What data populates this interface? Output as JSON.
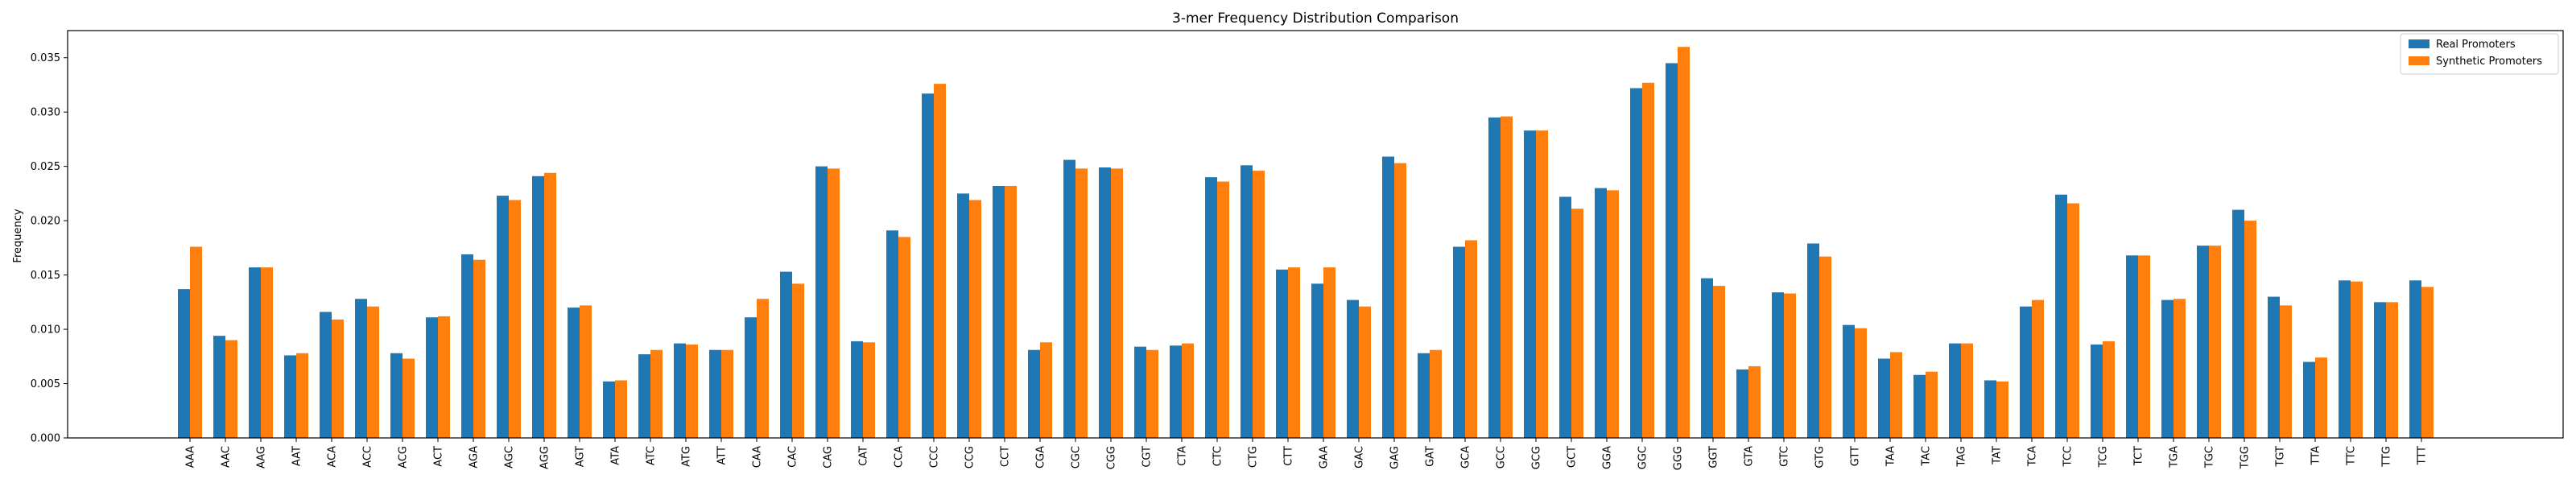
{
  "chart_data": {
    "type": "bar",
    "title": "3-mer Frequency Distribution Comparison",
    "xlabel": "",
    "ylabel": "Frequency",
    "ylim": [
      0,
      0.0375
    ],
    "yticks": [
      "0.000",
      "0.005",
      "0.010",
      "0.015",
      "0.020",
      "0.025",
      "0.030",
      "0.035"
    ],
    "grid": false,
    "legend_position": "top-right",
    "categories": [
      "AAA",
      "AAC",
      "AAG",
      "AAT",
      "ACA",
      "ACC",
      "ACG",
      "ACT",
      "AGA",
      "AGC",
      "AGG",
      "AGT",
      "ATA",
      "ATC",
      "ATG",
      "ATT",
      "CAA",
      "CAC",
      "CAG",
      "CAT",
      "CCA",
      "CCC",
      "CCG",
      "CCT",
      "CGA",
      "CGC",
      "CGG",
      "CGT",
      "CTA",
      "CTC",
      "CTG",
      "CTT",
      "GAA",
      "GAC",
      "GAG",
      "GAT",
      "GCA",
      "GCC",
      "GCG",
      "GCT",
      "GGA",
      "GGC",
      "GGG",
      "GGT",
      "GTA",
      "GTC",
      "GTG",
      "GTT",
      "TAA",
      "TAC",
      "TAG",
      "TAT",
      "TCA",
      "TCC",
      "TCG",
      "TCT",
      "TGA",
      "TGC",
      "TGG",
      "TGT",
      "TTA",
      "TTC",
      "TTG",
      "TTT"
    ],
    "series": [
      {
        "name": "Real Promoters",
        "color": "#1f77b4",
        "values": [
          0.0137,
          0.0094,
          0.0157,
          0.0076,
          0.0116,
          0.0128,
          0.0078,
          0.0111,
          0.0169,
          0.0223,
          0.0241,
          0.012,
          0.0052,
          0.0077,
          0.0087,
          0.0081,
          0.0111,
          0.0153,
          0.025,
          0.0089,
          0.0191,
          0.0317,
          0.0225,
          0.0232,
          0.0081,
          0.0256,
          0.0249,
          0.0084,
          0.0085,
          0.024,
          0.0251,
          0.0155,
          0.0142,
          0.0127,
          0.0259,
          0.0078,
          0.0176,
          0.0295,
          0.0283,
          0.0222,
          0.023,
          0.0322,
          0.0345,
          0.0147,
          0.0063,
          0.0134,
          0.0179,
          0.0104,
          0.0073,
          0.0058,
          0.0087,
          0.0053,
          0.0121,
          0.0224,
          0.0086,
          0.0168,
          0.0127,
          0.0177,
          0.021,
          0.013,
          0.007,
          0.0145,
          0.0125,
          0.0145
        ]
      },
      {
        "name": "Synthetic Promoters",
        "color": "#ff7f0e",
        "values": [
          0.0176,
          0.009,
          0.0157,
          0.0078,
          0.0109,
          0.0121,
          0.0073,
          0.0112,
          0.0164,
          0.0219,
          0.0244,
          0.0122,
          0.0053,
          0.0081,
          0.0086,
          0.0081,
          0.0128,
          0.0142,
          0.0248,
          0.0088,
          0.0185,
          0.0326,
          0.0219,
          0.0232,
          0.0088,
          0.0248,
          0.0248,
          0.0081,
          0.0087,
          0.0236,
          0.0246,
          0.0157,
          0.0157,
          0.0121,
          0.0253,
          0.0081,
          0.0182,
          0.0296,
          0.0283,
          0.0211,
          0.0228,
          0.0327,
          0.036,
          0.014,
          0.0066,
          0.0133,
          0.0167,
          0.0101,
          0.0079,
          0.0061,
          0.0087,
          0.0052,
          0.0127,
          0.0216,
          0.0089,
          0.0168,
          0.0128,
          0.0177,
          0.02,
          0.0122,
          0.0074,
          0.0144,
          0.0125,
          0.0139
        ]
      }
    ]
  }
}
